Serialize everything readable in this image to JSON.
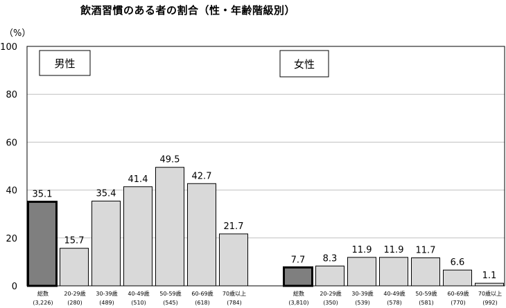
{
  "chart_data": {
    "type": "bar",
    "title": "飲酒習慣のある者の割合（性・年齢階級別）",
    "ylabel": "（%）",
    "ylim": [
      0,
      100
    ],
    "yticks": [
      0,
      20,
      40,
      60,
      80,
      100
    ],
    "grid": true,
    "panels": [
      {
        "name": "男性",
        "categories": [
          "総数",
          "20-29歳",
          "30-39歳",
          "40-49歳",
          "50-59歳",
          "60-69歳",
          "70歳以上"
        ],
        "n": [
          "(3,226)",
          "(280)",
          "(489)",
          "(510)",
          "(545)",
          "(618)",
          "(784)"
        ],
        "values": [
          35.1,
          15.7,
          35.4,
          41.4,
          49.5,
          42.7,
          21.7
        ],
        "labels": [
          "35.1",
          "15.7",
          "35.4",
          "41.4",
          "49.5",
          "42.7",
          "21.7"
        ]
      },
      {
        "name": "女性",
        "categories": [
          "総数",
          "20-29歳",
          "30-39歳",
          "40-49歳",
          "50-59歳",
          "60-69歳",
          "70歳以上"
        ],
        "n": [
          "(3,810)",
          "(350)",
          "(539)",
          "(578)",
          "(581)",
          "(770)",
          "(992)"
        ],
        "values": [
          7.7,
          8.3,
          11.9,
          11.9,
          11.7,
          6.6,
          1.1
        ],
        "labels": [
          "7.7",
          "8.3",
          "11.9",
          "11.9",
          "11.7",
          "6.6",
          "1.1"
        ]
      }
    ],
    "colors": {
      "total_bar": "#7f7f7f",
      "age_bar": "#d9d9d9",
      "gridline": "#bfbfbf"
    }
  }
}
